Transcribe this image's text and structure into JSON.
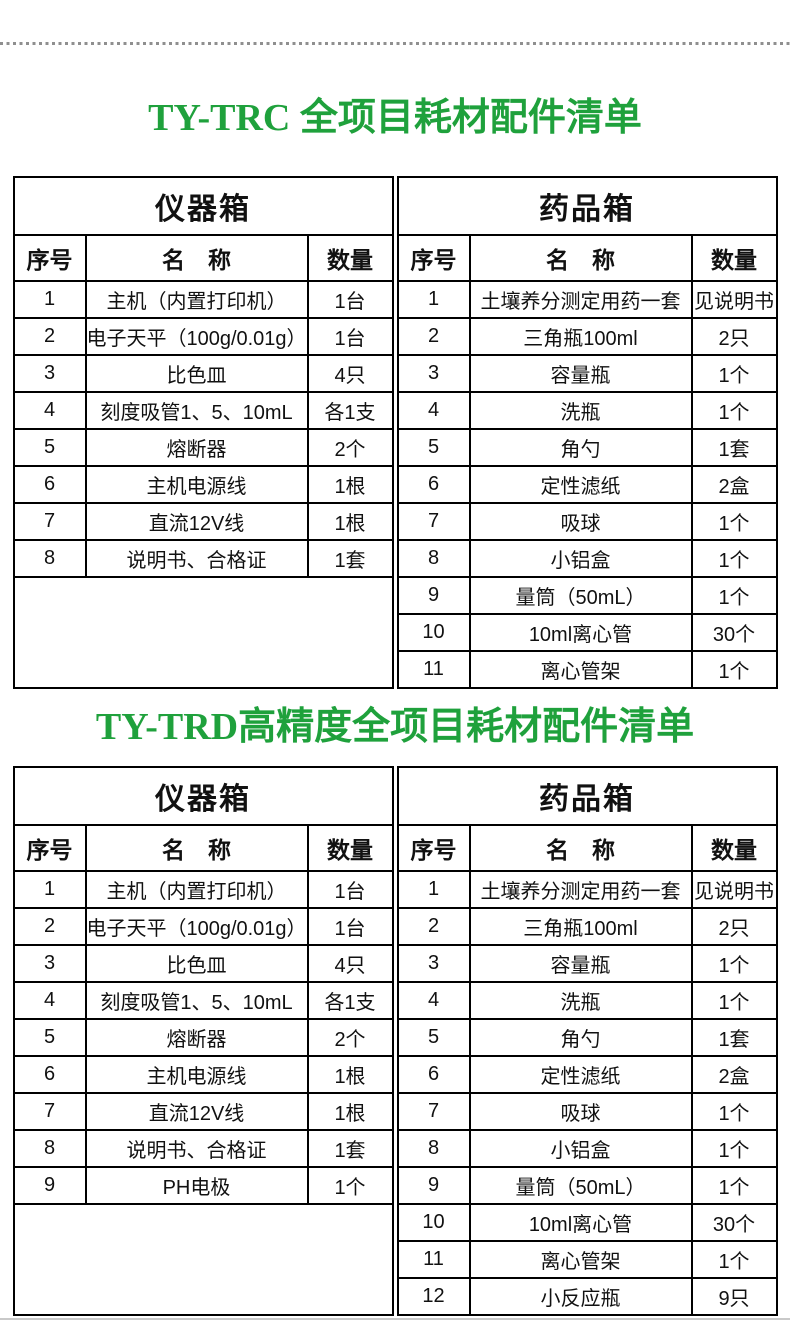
{
  "page": {
    "accent_green": "#1fa13c",
    "dot_divider_color": "#8f8f8f",
    "table_border_color": "#000000",
    "bottom_divider_color": "#c9c9c9"
  },
  "sections": [
    {
      "title": "TY-TRC 全项目耗材配件清单",
      "boxes": [
        {
          "header": "仪器箱",
          "columns": [
            "序号",
            "名　称",
            "数量"
          ],
          "rows": [
            [
              "1",
              "主机（内置打印机）",
              "1台"
            ],
            [
              "2",
              "电子天平（100g/0.01g）",
              "1台"
            ],
            [
              "3",
              "比色皿",
              "4只"
            ],
            [
              "4",
              "刻度吸管1、5、10mL",
              "各1支"
            ],
            [
              "5",
              "熔断器",
              "2个"
            ],
            [
              "6",
              "主机电源线",
              "1根"
            ],
            [
              "7",
              "直流12V线",
              "1根"
            ],
            [
              "8",
              "说明书、合格证",
              "1套"
            ]
          ]
        },
        {
          "header": "药品箱",
          "columns": [
            "序号",
            "名　称",
            "数量"
          ],
          "rows": [
            [
              "1",
              "土壤养分测定用药一套",
              "见说明书"
            ],
            [
              "2",
              "三角瓶100ml",
              "2只"
            ],
            [
              "3",
              "容量瓶",
              "1个"
            ],
            [
              "4",
              "洗瓶",
              "1个"
            ],
            [
              "5",
              "角勺",
              "1套"
            ],
            [
              "6",
              "定性滤纸",
              "2盒"
            ],
            [
              "7",
              "吸球",
              "1个"
            ],
            [
              "8",
              "小铝盒",
              "1个"
            ],
            [
              "9",
              "量筒（50mL）",
              "1个"
            ],
            [
              "10",
              "10ml离心管",
              "30个"
            ],
            [
              "11",
              "离心管架",
              "1个"
            ]
          ]
        }
      ]
    },
    {
      "title": "TY-TRD高精度全项目耗材配件清单",
      "boxes": [
        {
          "header": "仪器箱",
          "columns": [
            "序号",
            "名　称",
            "数量"
          ],
          "rows": [
            [
              "1",
              "主机（内置打印机）",
              "1台"
            ],
            [
              "2",
              "电子天平（100g/0.01g）",
              "1台"
            ],
            [
              "3",
              "比色皿",
              "4只"
            ],
            [
              "4",
              "刻度吸管1、5、10mL",
              "各1支"
            ],
            [
              "5",
              "熔断器",
              "2个"
            ],
            [
              "6",
              "主机电源线",
              "1根"
            ],
            [
              "7",
              "直流12V线",
              "1根"
            ],
            [
              "8",
              "说明书、合格证",
              "1套"
            ],
            [
              "9",
              "PH电极",
              "1个"
            ]
          ]
        },
        {
          "header": "药品箱",
          "columns": [
            "序号",
            "名　称",
            "数量"
          ],
          "rows": [
            [
              "1",
              "土壤养分测定用药一套",
              "见说明书"
            ],
            [
              "2",
              "三角瓶100ml",
              "2只"
            ],
            [
              "3",
              "容量瓶",
              "1个"
            ],
            [
              "4",
              "洗瓶",
              "1个"
            ],
            [
              "5",
              "角勺",
              "1套"
            ],
            [
              "6",
              "定性滤纸",
              "2盒"
            ],
            [
              "7",
              "吸球",
              "1个"
            ],
            [
              "8",
              "小铝盒",
              "1个"
            ],
            [
              "9",
              "量筒（50mL）",
              "1个"
            ],
            [
              "10",
              "10ml离心管",
              "30个"
            ],
            [
              "11",
              "离心管架",
              "1个"
            ],
            [
              "12",
              "小反应瓶",
              "9只"
            ]
          ]
        }
      ]
    }
  ]
}
